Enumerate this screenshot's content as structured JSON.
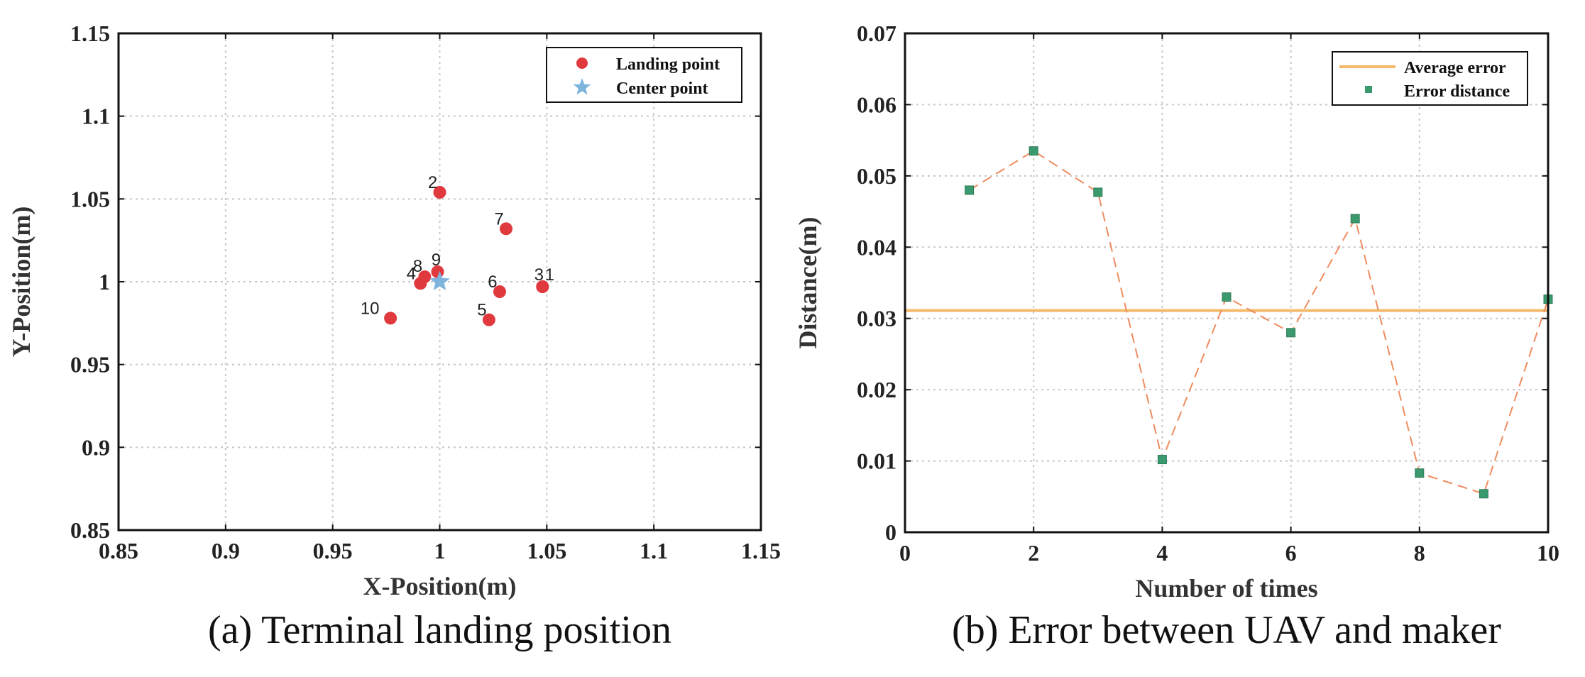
{
  "chart_data": [
    {
      "type": "scatter",
      "title": "",
      "caption": "(a) Terminal landing position",
      "xlabel": "X-Position(m)",
      "ylabel": "Y-Position(m)",
      "xlim": [
        0.85,
        1.15
      ],
      "ylim": [
        0.85,
        1.15
      ],
      "xticks": [
        0.85,
        0.9,
        0.95,
        1,
        1.05,
        1.1,
        1.15
      ],
      "xtick_labels": [
        "0.85",
        "0.9",
        "0.95",
        "1",
        "1.05",
        "1.1",
        "1.15"
      ],
      "yticks": [
        0.85,
        0.9,
        0.95,
        1,
        1.05,
        1.1,
        1.15
      ],
      "ytick_labels": [
        "0.85",
        "0.9",
        "0.95",
        "1",
        "1.05",
        "1.1",
        "1.15"
      ],
      "grid": true,
      "legend_position": "top-right",
      "series": [
        {
          "name": "Landing point",
          "color": "#e03a3e",
          "marker": "circle",
          "points": [
            {
              "label": "1",
              "x": 1.048,
              "y": 0.997
            },
            {
              "label": "2",
              "x": 1.0,
              "y": 1.054
            },
            {
              "label": "3",
              "x": 1.048,
              "y": 0.997
            },
            {
              "label": "4",
              "x": 0.991,
              "y": 0.999
            },
            {
              "label": "5",
              "x": 1.023,
              "y": 0.977
            },
            {
              "label": "6",
              "x": 1.028,
              "y": 0.994
            },
            {
              "label": "7",
              "x": 1.031,
              "y": 1.032
            },
            {
              "label": "8",
              "x": 0.993,
              "y": 1.003
            },
            {
              "label": "9",
              "x": 0.999,
              "y": 1.006
            },
            {
              "label": "10",
              "x": 0.977,
              "y": 0.978
            }
          ]
        },
        {
          "name": "Center point",
          "color": "#7fb4dd",
          "marker": "star",
          "points": [
            {
              "label": "",
              "x": 1.0,
              "y": 1.0
            }
          ]
        }
      ]
    },
    {
      "type": "line",
      "title": "",
      "caption": "(b) Error between UAV and maker",
      "xlabel": "Number of times",
      "ylabel": "Distance(m)",
      "xlim": [
        0,
        10
      ],
      "ylim": [
        0,
        0.07
      ],
      "xticks": [
        0,
        2,
        4,
        6,
        8,
        10
      ],
      "xtick_labels": [
        "0",
        "2",
        "4",
        "6",
        "8",
        "10"
      ],
      "yticks": [
        0,
        0.01,
        0.02,
        0.03,
        0.04,
        0.05,
        0.06,
        0.07
      ],
      "ytick_labels": [
        "0",
        "0.01",
        "0.02",
        "0.03",
        "0.04",
        "0.05",
        "0.06",
        "0.07"
      ],
      "grid": true,
      "legend_position": "top-right",
      "average_error": {
        "name": "Average error",
        "value": 0.0311,
        "color": "#f5b96b"
      },
      "error_distance": {
        "name": "Error distance",
        "marker_color": "#3a9a6e",
        "line_color": "#ef8c5f",
        "x": [
          1,
          2,
          3,
          4,
          5,
          6,
          7,
          8,
          9,
          10
        ],
        "y": [
          0.048,
          0.0535,
          0.0477,
          0.0102,
          0.033,
          0.028,
          0.044,
          0.0083,
          0.0054,
          0.0327
        ]
      }
    }
  ]
}
